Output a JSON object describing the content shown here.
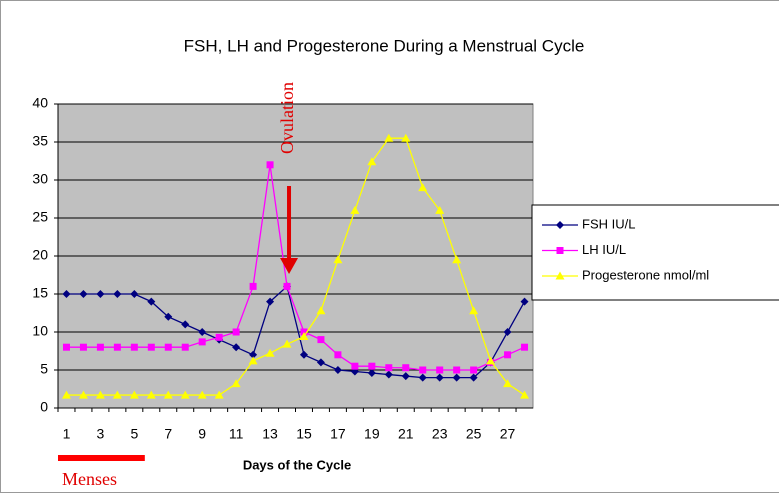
{
  "chart_data": {
    "type": "line",
    "title": "FSH, LH and Progesterone During a Menstrual Cycle",
    "x_label": "Days of the Cycle",
    "categories": [
      1,
      null,
      3,
      null,
      5,
      null,
      7,
      null,
      9,
      null,
      11,
      null,
      13,
      null,
      15,
      null,
      17,
      null,
      19,
      null,
      21,
      null,
      23,
      null,
      25,
      null,
      27,
      null
    ],
    "series": [
      {
        "name": "FSH IU/L",
        "color": "#000080",
        "marker": "diamond",
        "values": [
          15,
          15,
          15,
          15,
          15,
          14,
          12,
          11,
          10,
          9,
          8,
          7,
          14,
          16,
          7,
          6,
          5,
          4.8,
          4.6,
          4.4,
          4.2,
          4,
          4,
          4,
          4,
          6,
          10,
          14
        ]
      },
      {
        "name": "LH IU/L",
        "color": "#ff00ff",
        "marker": "square",
        "values": [
          8,
          8,
          8,
          8,
          8,
          8,
          8,
          8,
          8.7,
          9.3,
          10,
          16,
          32,
          16,
          10,
          9,
          7,
          5.5,
          5.5,
          5.3,
          5.3,
          5,
          5,
          5,
          5,
          6,
          7,
          8
        ]
      },
      {
        "name": "Progesterone nmol/ml",
        "color": "#ffff00",
        "marker": "triangle",
        "values": [
          1.7,
          1.7,
          1.7,
          1.7,
          1.7,
          1.7,
          1.7,
          1.7,
          1.7,
          1.7,
          3.2,
          6.2,
          7.2,
          8.4,
          9.4,
          12.8,
          19.5,
          26,
          32.4,
          35.5,
          35.5,
          29,
          26,
          19.5,
          12.8,
          6.2,
          3.2,
          1.7
        ]
      }
    ],
    "ylim": [
      0,
      40
    ],
    "yticks": [
      0,
      5,
      10,
      15,
      20,
      25,
      30,
      35,
      40
    ],
    "grid": true,
    "plot_background": "#c0c0c0",
    "legend": "right",
    "annotations": [
      "Ovulation",
      "Menses"
    ]
  }
}
